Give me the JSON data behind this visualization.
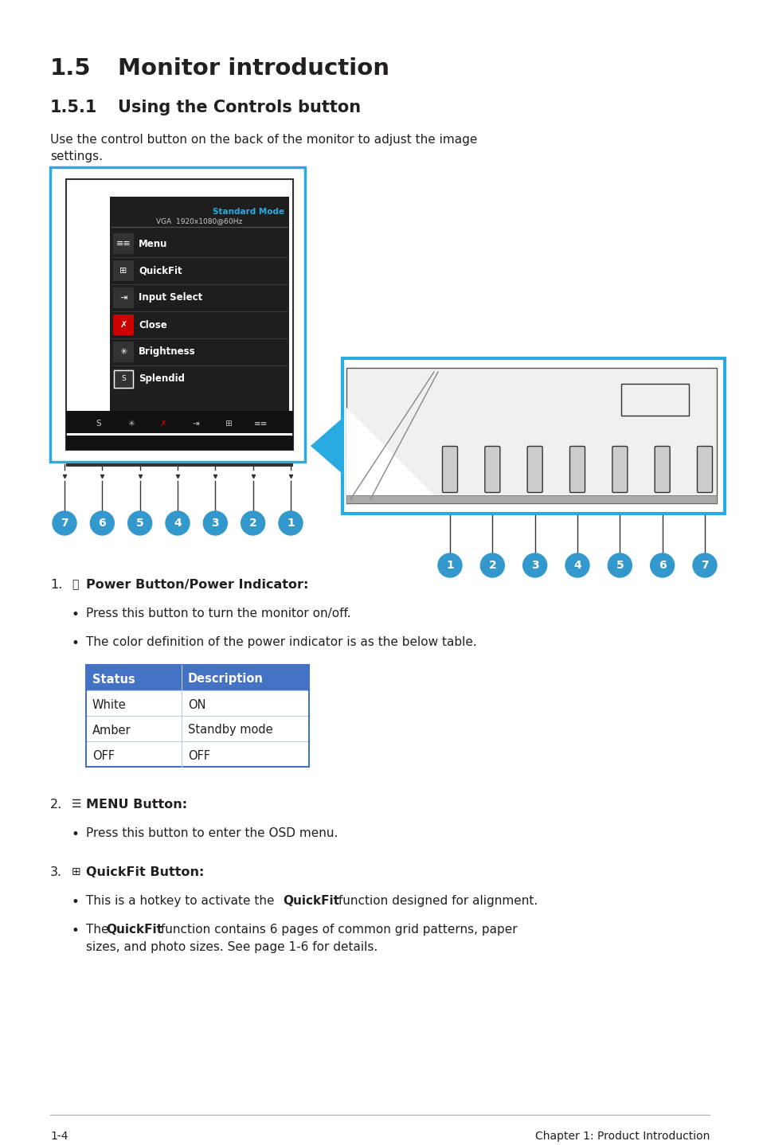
{
  "title_1": "1.5",
  "title_1_text": "Monitor introduction",
  "title_2": "1.5.1",
  "title_2_text": "Using the Controls button",
  "intro_text": "Use the control button on the back of the monitor to adjust the image\nsettings.",
  "osd_header_1": "Standard Mode",
  "osd_header_2": "VGA  1920x1080@60Hz",
  "circle_color": "#3399cc",
  "table_header_bg": "#4472c4",
  "table_header_color": "#ffffff",
  "table_rows": [
    [
      "White",
      "ON"
    ],
    [
      "Amber",
      "Standby mode"
    ],
    [
      "OFF",
      "OFF"
    ]
  ],
  "item1_title": "Power Button/Power Indicator:",
  "item1_bullet1": "Press this button to turn the monitor on/off.",
  "item1_bullet2": "The color definition of the power indicator is as the below table.",
  "item2_title": "MENU Button:",
  "item2_bullet1": "Press this button to enter the OSD menu.",
  "item3_title": "QuickFit Button:",
  "item3_bullet1": "This is a hotkey to activate the QuickFit function designed for alignment.",
  "item3_bullet2_pre": "The ",
  "item3_bullet2_bold": "QuickFit",
  "item3_bullet2_post": " function contains 6 pages of common grid patterns, paper",
  "item3_bullet2_line2": "sizes, and photo sizes. See page 1-6 for details.",
  "footer_left": "1-4",
  "footer_right": "Chapter 1: Product Introduction",
  "bg_color": "#ffffff",
  "border_color": "#29abe2",
  "text_color": "#231f20",
  "osd_bg": "#222222",
  "osd_item_border": "#444444",
  "icon_close_color": "#cc0000"
}
